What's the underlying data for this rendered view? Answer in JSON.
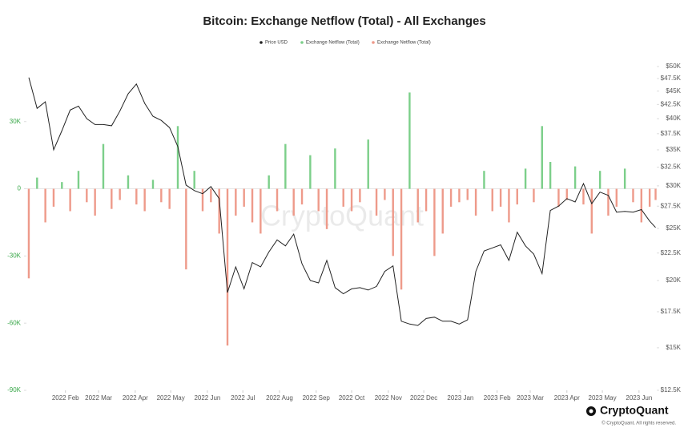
{
  "chart_data": {
    "type": "line-bar",
    "title": "Bitcoin: Exchange Netflow (Total) - All Exchanges",
    "watermark": "CryptoQuant",
    "brand": "CryptoQuant",
    "copyright": "© CryptoQuant. All rights reserved.",
    "x": [
      "2022-01-01",
      "2022-01-08",
      "2022-01-15",
      "2022-01-22",
      "2022-01-29",
      "2022-02-05",
      "2022-02-12",
      "2022-02-19",
      "2022-02-26",
      "2022-03-05",
      "2022-03-12",
      "2022-03-19",
      "2022-03-26",
      "2022-04-02",
      "2022-04-09",
      "2022-04-16",
      "2022-04-23",
      "2022-04-30",
      "2022-05-07",
      "2022-05-14",
      "2022-05-21",
      "2022-05-28",
      "2022-06-04",
      "2022-06-11",
      "2022-06-18",
      "2022-06-25",
      "2022-07-02",
      "2022-07-09",
      "2022-07-16",
      "2022-07-23",
      "2022-07-30",
      "2022-08-06",
      "2022-08-13",
      "2022-08-20",
      "2022-08-27",
      "2022-09-03",
      "2022-09-10",
      "2022-09-17",
      "2022-09-24",
      "2022-10-01",
      "2022-10-08",
      "2022-10-15",
      "2022-10-22",
      "2022-10-29",
      "2022-11-05",
      "2022-11-12",
      "2022-11-19",
      "2022-11-26",
      "2022-12-03",
      "2022-12-10",
      "2022-12-17",
      "2022-12-24",
      "2022-12-31",
      "2023-01-07",
      "2023-01-14",
      "2023-01-21",
      "2023-01-28",
      "2023-02-04",
      "2023-02-11",
      "2023-02-18",
      "2023-02-25",
      "2023-03-04",
      "2023-03-11",
      "2023-03-18",
      "2023-03-25",
      "2023-04-01",
      "2023-04-08",
      "2023-04-15",
      "2023-04-22",
      "2023-04-29",
      "2023-05-06",
      "2023-05-13",
      "2023-05-20",
      "2023-05-27",
      "2023-06-03",
      "2023-06-10",
      "2023-06-15"
    ],
    "series": [
      {
        "name": "Price USD",
        "color": "#222222",
        "axis": "y2",
        "kind": "line",
        "values": [
          47700,
          41800,
          43000,
          35000,
          38000,
          41500,
          42200,
          40000,
          39000,
          39000,
          38800,
          41300,
          44500,
          46400,
          42700,
          40400,
          39700,
          38500,
          35500,
          30100,
          29400,
          29000,
          29900,
          28400,
          19000,
          21200,
          19300,
          21600,
          21200,
          22600,
          23800,
          23200,
          24400,
          21500,
          20000,
          19800,
          21800,
          19400,
          18900,
          19300,
          19400,
          19200,
          19500,
          20800,
          21300,
          16800,
          16600,
          16500,
          17000,
          17100,
          16800,
          16800,
          16600,
          16900,
          20800,
          22700,
          23000,
          23300,
          21800,
          24600,
          23200,
          22400,
          20600,
          27000,
          27500,
          28400,
          28000,
          30300,
          27800,
          29200,
          28800,
          26800,
          26900,
          26800,
          27100,
          25800,
          25100
        ]
      },
      {
        "name": "Exchange Netflow (Total)",
        "color": "#7ccf8a",
        "kind": "bar",
        "values": [
          null,
          5000,
          null,
          null,
          3000,
          null,
          8000,
          null,
          null,
          20000,
          null,
          null,
          6000,
          null,
          null,
          4000,
          null,
          null,
          28000,
          null,
          8000,
          null,
          null,
          null,
          null,
          null,
          null,
          null,
          null,
          6000,
          null,
          20000,
          null,
          null,
          15000,
          null,
          null,
          18000,
          null,
          null,
          null,
          22000,
          null,
          null,
          null,
          null,
          43000,
          null,
          null,
          null,
          null,
          null,
          null,
          null,
          null,
          8000,
          null,
          null,
          null,
          null,
          9000,
          null,
          28000,
          12000,
          null,
          null,
          10000,
          null,
          null,
          8000,
          null,
          null,
          9000,
          null,
          null,
          null,
          null
        ]
      },
      {
        "name": "Exchange Netflow (Total)",
        "color": "#ee9a8a",
        "kind": "bar",
        "values": [
          -40000,
          null,
          -15000,
          -8000,
          null,
          -10000,
          null,
          -6000,
          -12000,
          null,
          -9000,
          -5000,
          null,
          -7000,
          -10000,
          null,
          -6000,
          -9000,
          null,
          -36000,
          null,
          -10000,
          -6000,
          -20000,
          -70000,
          -12000,
          -8000,
          -15000,
          -20000,
          null,
          -10000,
          null,
          -12000,
          -7000,
          null,
          -10000,
          -18000,
          null,
          -8000,
          -10000,
          -6000,
          null,
          -12000,
          -5000,
          -30000,
          -45000,
          null,
          -15000,
          -10000,
          -30000,
          -20000,
          -8000,
          -6000,
          -5000,
          -12000,
          null,
          -10000,
          -8000,
          -15000,
          -7000,
          null,
          -6000,
          null,
          null,
          -8000,
          -5000,
          null,
          -7000,
          -20000,
          null,
          -12000,
          -8000,
          null,
          -6000,
          -15000,
          -8000,
          -5000
        ]
      }
    ],
    "xlim": [
      "2021-12-30",
      "2023-06-16"
    ],
    "xticks": [
      {
        "value": "2022-02-01",
        "label": "2022 Feb"
      },
      {
        "value": "2022-03-01",
        "label": "2022 Mar"
      },
      {
        "value": "2022-04-01",
        "label": "2022 Apr"
      },
      {
        "value": "2022-05-01",
        "label": "2022 May"
      },
      {
        "value": "2022-06-01",
        "label": "2022 Jun"
      },
      {
        "value": "2022-07-01",
        "label": "2022 Jul"
      },
      {
        "value": "2022-08-01",
        "label": "2022 Aug"
      },
      {
        "value": "2022-09-01",
        "label": "2022 Sep"
      },
      {
        "value": "2022-10-01",
        "label": "2022 Oct"
      },
      {
        "value": "2022-11-01",
        "label": "2022 Nov"
      },
      {
        "value": "2022-12-01",
        "label": "2022 Dec"
      },
      {
        "value": "2023-01-01",
        "label": "2023 Jan"
      },
      {
        "value": "2023-02-01",
        "label": "2023 Feb"
      },
      {
        "value": "2023-03-01",
        "label": "2023 Mar"
      },
      {
        "value": "2023-04-01",
        "label": "2023 Apr"
      },
      {
        "value": "2023-05-01",
        "label": "2023 May"
      },
      {
        "value": "2023-06-01",
        "label": "2023 Jun"
      }
    ],
    "ylim": [
      -90000,
      54600
    ],
    "yticks": [
      {
        "value": 30000,
        "label": "30K"
      },
      0,
      {
        "value": -30000,
        "label": "-30K"
      },
      {
        "value": -60000,
        "label": "-60K"
      },
      {
        "value": -90000,
        "label": "-90K"
      }
    ],
    "y2lim": [
      12500,
      50000
    ],
    "y2log": true,
    "y2ticks": [
      {
        "value": 50000,
        "label": "$50K"
      },
      {
        "value": 47500,
        "label": "$47.5K"
      },
      {
        "value": 45000,
        "label": "$45K"
      },
      {
        "value": 42500,
        "label": "$42.5K"
      },
      {
        "value": 40000,
        "label": "$40K"
      },
      {
        "value": 37500,
        "label": "$37.5K"
      },
      {
        "value": 35000,
        "label": "$35K"
      },
      {
        "value": 32500,
        "label": "$32.5K"
      },
      {
        "value": 30000,
        "label": "$30K"
      },
      {
        "value": 27500,
        "label": "$27.5K"
      },
      {
        "value": 25000,
        "label": "$25K"
      },
      {
        "value": 22500,
        "label": "$22.5K"
      },
      {
        "value": 20000,
        "label": "$20K"
      },
      {
        "value": 17500,
        "label": "$17.5K"
      },
      {
        "value": 15000,
        "label": "$15K"
      },
      {
        "value": 12500,
        "label": "$12.5K"
      }
    ],
    "legend": "top"
  }
}
